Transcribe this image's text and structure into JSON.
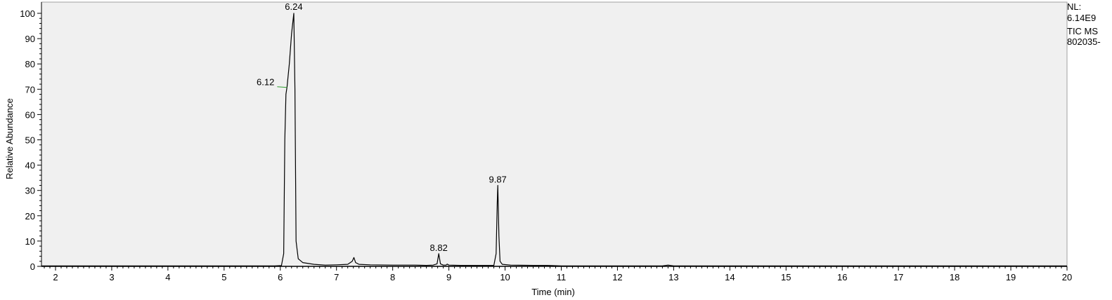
{
  "side_notes": {
    "nl_label": "NL:",
    "nl_value": "6.14E9",
    "trace": "TIC  MS",
    "file": "802035-"
  },
  "chart_data": {
    "type": "line",
    "xlabel": "Time (min)",
    "ylabel": "Relative Abundance",
    "xlim": [
      1.75,
      20
    ],
    "ylim": [
      0,
      100
    ],
    "xticks": [
      2,
      3,
      4,
      5,
      6,
      7,
      8,
      9,
      10,
      11,
      12,
      13,
      14,
      15,
      16,
      17,
      18,
      19,
      20
    ],
    "yticks": [
      0,
      10,
      20,
      30,
      40,
      50,
      60,
      70,
      80,
      90,
      100
    ],
    "grid": false,
    "background_color": "#f0f0f0",
    "line_color": "#000000",
    "annotation_line_color": "#2e9e2e",
    "series": [
      {
        "x": [
          1.75,
          2.5,
          3.5,
          4.5,
          5.5,
          5.9,
          6.02,
          6.06,
          6.08,
          6.1,
          6.12,
          6.16,
          6.2,
          6.24,
          6.26,
          6.28,
          6.32,
          6.4,
          6.6,
          6.8,
          7.0,
          7.2,
          7.28,
          7.31,
          7.34,
          7.4,
          7.6,
          8.0,
          8.4,
          8.6,
          8.72,
          8.79,
          8.82,
          8.85,
          8.9,
          8.95,
          8.97,
          9.0,
          9.2,
          9.5,
          9.8,
          9.84,
          9.86,
          9.87,
          9.89,
          9.91,
          9.95,
          10.1,
          10.5,
          10.75,
          11.0,
          12.0,
          12.8,
          12.9,
          13.0,
          13.2,
          14.0,
          16.0,
          18.0,
          20.0
        ],
        "y": [
          0.2,
          0.2,
          0.2,
          0.2,
          0.2,
          0.2,
          0.3,
          5.0,
          50.0,
          68.0,
          71.0,
          80.0,
          92.0,
          100.0,
          70.0,
          10.0,
          3.0,
          1.5,
          0.8,
          0.5,
          0.6,
          0.8,
          2.0,
          3.5,
          1.5,
          0.8,
          0.6,
          0.5,
          0.5,
          0.4,
          0.5,
          1.0,
          5.0,
          1.0,
          0.5,
          0.5,
          0.9,
          0.5,
          0.4,
          0.4,
          0.4,
          5.0,
          25.0,
          32.0,
          12.0,
          2.0,
          0.8,
          0.5,
          0.4,
          0.4,
          0.2,
          0.2,
          0.2,
          0.5,
          0.2,
          0.2,
          0.2,
          0.2,
          0.2,
          0.2
        ]
      }
    ],
    "peak_labels": [
      {
        "text": "6.24",
        "x": 6.24,
        "y": 100
      },
      {
        "text": "6.12",
        "x": 6.12,
        "y": 71
      },
      {
        "text": "8.82",
        "x": 8.82,
        "y": 5
      },
      {
        "text": "9.87",
        "x": 9.87,
        "y": 32
      }
    ]
  }
}
